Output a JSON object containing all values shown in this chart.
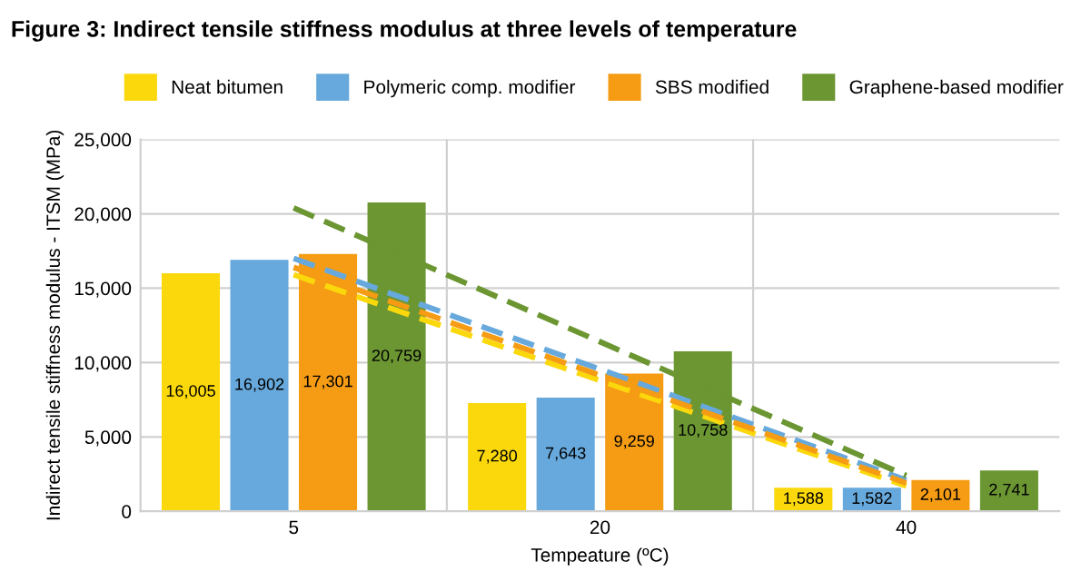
{
  "chart_data": {
    "type": "bar",
    "title": "Figure 3: Indirect tensile stiffness modulus at three levels of temperature",
    "xlabel": "Tempeature (ºC)",
    "ylabel": "Indirect tensile stiffness modulus - ITSM (MPa)",
    "categories": [
      "5",
      "20",
      "40"
    ],
    "series": [
      {
        "name": "Neat bitumen",
        "color": "#fbd80c",
        "values": [
          16005,
          7280,
          1588
        ],
        "value_labels": [
          "16,005",
          "7,280",
          "1,588"
        ]
      },
      {
        "name": "Polymeric comp. modifier",
        "color": "#67a9dc",
        "values": [
          16902,
          7643,
          1582
        ],
        "value_labels": [
          "16,902",
          "7,643",
          "1,582"
        ]
      },
      {
        "name": "SBS modified",
        "color": "#f59c14",
        "values": [
          17301,
          9259,
          2101
        ],
        "value_labels": [
          "17,301",
          "9,259",
          "2,101"
        ]
      },
      {
        "name": "Graphene-based modifier",
        "color": "#6b9632",
        "values": [
          20759,
          10758,
          2741
        ],
        "value_labels": [
          "20,759",
          "10,758",
          "2,741"
        ]
      },
      {
        "type": "line",
        "color": "#fbd80c",
        "x": [
          "5",
          "40"
        ],
        "values": [
          15900,
          1700
        ],
        "line_style": "dashed"
      },
      {
        "type": "line",
        "color": "#67a9dc",
        "x": [
          "5",
          "40"
        ],
        "values": [
          17000,
          2100
        ],
        "line_style": "dashed"
      },
      {
        "type": "line",
        "color": "#f59c14",
        "x": [
          "5",
          "40"
        ],
        "values": [
          16400,
          1900
        ],
        "line_style": "dashed"
      },
      {
        "type": "line",
        "color": "#6b9632",
        "x": [
          "5",
          "40"
        ],
        "values": [
          20400,
          2400
        ],
        "line_style": "dashed"
      }
    ],
    "ylim": [
      0,
      25000
    ],
    "yticks": [
      {
        "value": 0,
        "label": "0"
      },
      {
        "value": 5000,
        "label": "5,000"
      },
      {
        "value": 10000,
        "label": "10,000"
      },
      {
        "value": 15000,
        "label": "15,000"
      },
      {
        "value": 20000,
        "label": "20,000"
      },
      {
        "value": 25000,
        "label": "25,000"
      }
    ],
    "grid": true,
    "legend": "top"
  }
}
